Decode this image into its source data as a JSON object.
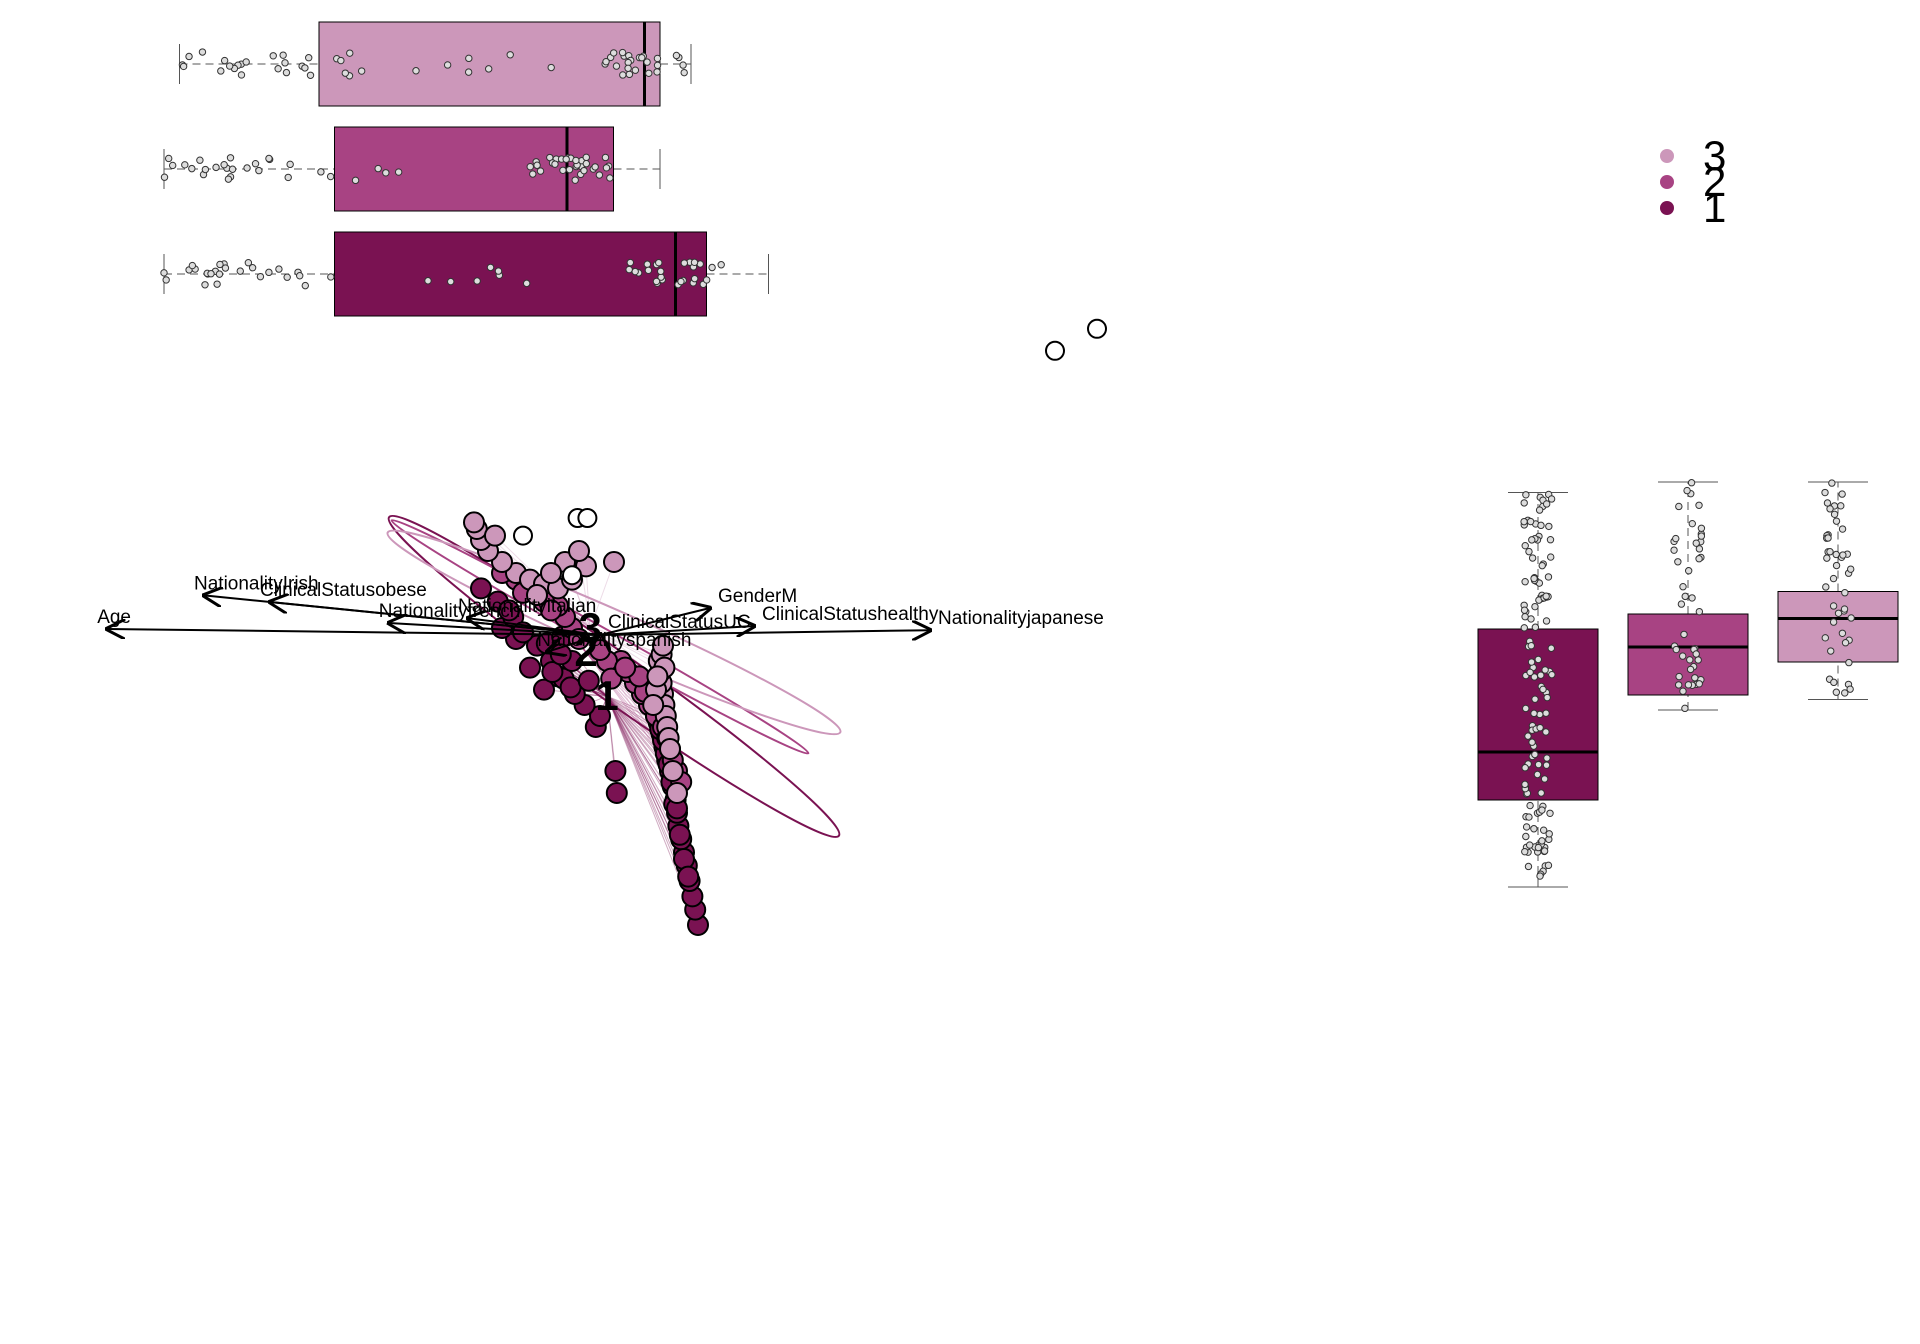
{
  "chart_data": {
    "type": "scatter",
    "subtype": "ordination biplot with cluster centroids, spiders and confidence ellipses, plus marginal boxplots",
    "title": "",
    "xlabel": "",
    "ylabel": "",
    "colors": {
      "1": "#7a1252",
      "2": "#a84383",
      "3": "#cc97ba"
    },
    "legend": {
      "position": "top-right",
      "entries": [
        "3",
        "2",
        "1"
      ]
    },
    "groups": [
      {
        "name": "1",
        "centroid": [
          0.05,
          -0.21
        ],
        "ellipse": {
          "cx": 0.1,
          "cy": -0.12,
          "rx": 1.27,
          "ry": 0.2,
          "angle": 35.3
        }
      },
      {
        "name": "2",
        "centroid": [
          -0.1,
          -0.01
        ],
        "ellipse": {
          "cx": 0.0,
          "cy": 0.06,
          "rx": 1.1,
          "ry": 0.08,
          "angle": 29.2
        }
      },
      {
        "name": "3",
        "centroid": [
          -0.07,
          0.1
        ],
        "ellipse": {
          "cx": 0.1,
          "cy": 0.08,
          "rx": 1.14,
          "ry": 0.18,
          "angle": 23.8
        }
      }
    ],
    "biplot_arrows": [
      {
        "label": "Age",
        "x": -1.12,
        "y": 0.1
      },
      {
        "label": "Nationalityjapanese",
        "x": 0.75,
        "y": 0.08
      },
      {
        "label": "GenderM",
        "x": 0.25,
        "y": 0.45
      },
      {
        "label": "NationalityIrish",
        "x": -0.9,
        "y": 0.66
      },
      {
        "label": "ClinicalStatusobese",
        "x": -0.75,
        "y": 0.55
      },
      {
        "label": "Nationalityitalian",
        "x": -0.3,
        "y": 0.28
      },
      {
        "label": "Nationalityfrench",
        "x": -0.48,
        "y": 0.2
      },
      {
        "label": "ClinicalStatushealthy",
        "x": 0.35,
        "y": 0.15
      },
      {
        "label": "ClinicalStatusUC",
        "x": 0.0,
        "y": 0.02
      },
      {
        "label": "Nationalityspanish",
        "x": -0.12,
        "y": -0.28
      }
    ],
    "open_points": [
      [
        -0.16,
        0.6
      ],
      [
        -0.09,
        0.6
      ],
      [
        3.25,
        1.36
      ],
      [
        3.55,
        1.46
      ],
      [
        -0.55,
        0.52
      ],
      [
        -0.2,
        0.34
      ]
    ],
    "points": {
      "1": [
        [
          0.7,
          -1.25
        ],
        [
          0.68,
          -1.18
        ],
        [
          0.66,
          -1.12
        ],
        [
          0.64,
          -1.05
        ],
        [
          0.62,
          -0.98
        ],
        [
          0.6,
          -0.92
        ],
        [
          0.58,
          -0.86
        ],
        [
          0.56,
          -0.8
        ],
        [
          0.55,
          -0.74
        ],
        [
          0.54,
          -0.68
        ],
        [
          0.52,
          -0.62
        ],
        [
          0.5,
          -0.55
        ],
        [
          0.48,
          -0.5
        ],
        [
          0.46,
          -0.44
        ],
        [
          0.44,
          -0.38
        ],
        [
          0.42,
          -0.33
        ],
        [
          0.57,
          -0.84
        ],
        [
          0.53,
          -0.7
        ],
        [
          0.47,
          -0.47
        ],
        [
          0.45,
          -0.41
        ],
        [
          0.52,
          -0.58
        ],
        [
          0.49,
          -0.52
        ],
        [
          0.43,
          -0.36
        ],
        [
          0.4,
          -0.3
        ],
        [
          0.6,
          -0.95
        ],
        [
          0.63,
          -1.03
        ],
        [
          0.55,
          -0.72
        ],
        [
          0.51,
          -0.6
        ],
        [
          0.12,
          -0.65
        ],
        [
          0.11,
          -0.55
        ],
        [
          -0.03,
          -0.35
        ],
        [
          0.0,
          -0.3
        ],
        [
          -0.11,
          -0.25
        ],
        [
          -0.18,
          -0.2
        ],
        [
          -0.3,
          -0.12
        ],
        [
          -0.4,
          -0.18
        ],
        [
          -0.5,
          -0.08
        ],
        [
          -0.6,
          0.05
        ],
        [
          -0.7,
          0.1
        ],
        [
          -0.85,
          0.28
        ],
        [
          -0.62,
          0.15
        ],
        [
          -0.73,
          0.22
        ],
        [
          -0.45,
          0.02
        ],
        [
          -0.35,
          -0.05
        ],
        [
          -0.26,
          -0.13
        ],
        [
          -0.21,
          -0.17
        ],
        [
          -0.55,
          0.08
        ],
        [
          -0.38,
          0.03
        ],
        [
          -0.27,
          0.06
        ],
        [
          -0.34,
          -0.1
        ],
        [
          -0.2,
          -0.05
        ],
        [
          -0.08,
          -0.14
        ],
        [
          -0.28,
          -0.02
        ],
        [
          -0.65,
          0.18
        ]
      ],
      "2": [
        [
          0.35,
          -0.25
        ],
        [
          0.3,
          -0.2
        ],
        [
          0.25,
          -0.15
        ],
        [
          0.2,
          -0.1
        ],
        [
          0.15,
          -0.05
        ],
        [
          0.4,
          -0.3
        ],
        [
          0.45,
          -0.35
        ],
        [
          0.5,
          -0.45
        ],
        [
          0.55,
          -0.55
        ],
        [
          0.58,
          -0.6
        ],
        [
          0.1,
          -0.1
        ],
        [
          0.05,
          -0.05
        ],
        [
          0.0,
          0.0
        ],
        [
          -0.2,
          0.1
        ],
        [
          -0.25,
          0.15
        ],
        [
          -0.3,
          0.2
        ],
        [
          -0.4,
          0.22
        ],
        [
          -0.45,
          0.25
        ],
        [
          -0.5,
          0.28
        ],
        [
          -0.6,
          0.32
        ],
        [
          -0.7,
          0.35
        ],
        [
          -0.15,
          0.05
        ],
        [
          0.08,
          -0.13
        ],
        [
          0.32,
          -0.19
        ],
        [
          0.28,
          -0.12
        ],
        [
          0.48,
          -0.4
        ],
        [
          0.52,
          -0.5
        ],
        [
          -0.35,
          0.18
        ],
        [
          -0.55,
          0.26
        ],
        [
          0.18,
          -0.08
        ]
      ],
      "3": [
        [
          0.45,
          -0.2
        ],
        [
          0.46,
          -0.25
        ],
        [
          0.47,
          -0.3
        ],
        [
          0.48,
          -0.35
        ],
        [
          0.49,
          -0.4
        ],
        [
          0.5,
          -0.45
        ],
        [
          0.52,
          -0.55
        ],
        [
          0.55,
          -0.65
        ],
        [
          0.44,
          -0.15
        ],
        [
          0.43,
          -0.1
        ],
        [
          0.42,
          -0.05
        ],
        [
          0.44,
          -0.02
        ],
        [
          0.45,
          0.02
        ],
        [
          0.4,
          -0.18
        ],
        [
          0.38,
          -0.25
        ],
        [
          -0.6,
          0.35
        ],
        [
          -0.7,
          0.4
        ],
        [
          -0.8,
          0.45
        ],
        [
          -0.85,
          0.5
        ],
        [
          -0.88,
          0.55
        ],
        [
          -0.9,
          0.58
        ],
        [
          -0.5,
          0.32
        ],
        [
          -0.4,
          0.3
        ],
        [
          -0.3,
          0.28
        ],
        [
          -0.2,
          0.32
        ],
        [
          -0.1,
          0.38
        ],
        [
          0.1,
          0.4
        ],
        [
          -0.25,
          0.4
        ],
        [
          -0.15,
          0.45
        ],
        [
          -0.45,
          0.25
        ],
        [
          -0.35,
          0.35
        ],
        [
          -0.75,
          0.52
        ],
        [
          0.46,
          -0.08
        ],
        [
          0.41,
          -0.12
        ]
      ]
    },
    "top_boxplots": [
      {
        "group": "3",
        "min": -2.5,
        "q1": -1.6,
        "median": 0.5,
        "q3": 0.6,
        "max": 0.8
      },
      {
        "group": "2",
        "min": -2.6,
        "q1": -1.5,
        "median": 0.0,
        "q3": 0.3,
        "max": 0.6
      },
      {
        "group": "1",
        "min": -2.6,
        "q1": -1.5,
        "median": 0.7,
        "q3": 0.9,
        "max": 1.3
      }
    ],
    "right_boxplots": [
      {
        "group": "1",
        "min": -1.3,
        "q1": -0.72,
        "median": -0.4,
        "q3": 0.42,
        "max": 1.33
      },
      {
        "group": "2",
        "min": -0.12,
        "q1": -0.02,
        "median": 0.3,
        "q3": 0.52,
        "max": 1.4
      },
      {
        "group": "3",
        "min": -0.05,
        "q1": 0.2,
        "median": 0.49,
        "q3": 0.67,
        "max": 1.4
      }
    ]
  }
}
